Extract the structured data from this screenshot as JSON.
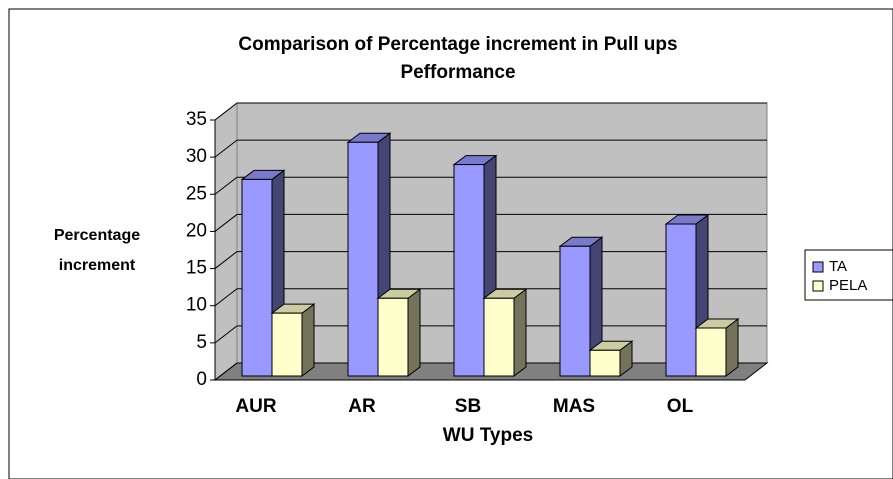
{
  "chart_data": {
    "type": "bar3d",
    "title": [
      "Comparison of Percentage increment in Pull ups",
      "Pefformance"
    ],
    "x_label": "WU Types",
    "y_label": [
      "Percentage",
      "increment"
    ],
    "categories": [
      "AUR",
      "AR",
      "SB",
      "MAS",
      "OL"
    ],
    "series": [
      {
        "name": "TA",
        "color": "#9999ff",
        "values": [
          27,
          32,
          29,
          18,
          21
        ]
      },
      {
        "name": "PELA",
        "color": "#ffffcc",
        "values": [
          9,
          11,
          11,
          4,
          7
        ]
      }
    ],
    "ylim": [
      0,
      35
    ],
    "yticks": [
      0,
      5,
      10,
      15,
      20,
      25,
      30,
      35
    ],
    "grid": true,
    "legend": "right"
  }
}
